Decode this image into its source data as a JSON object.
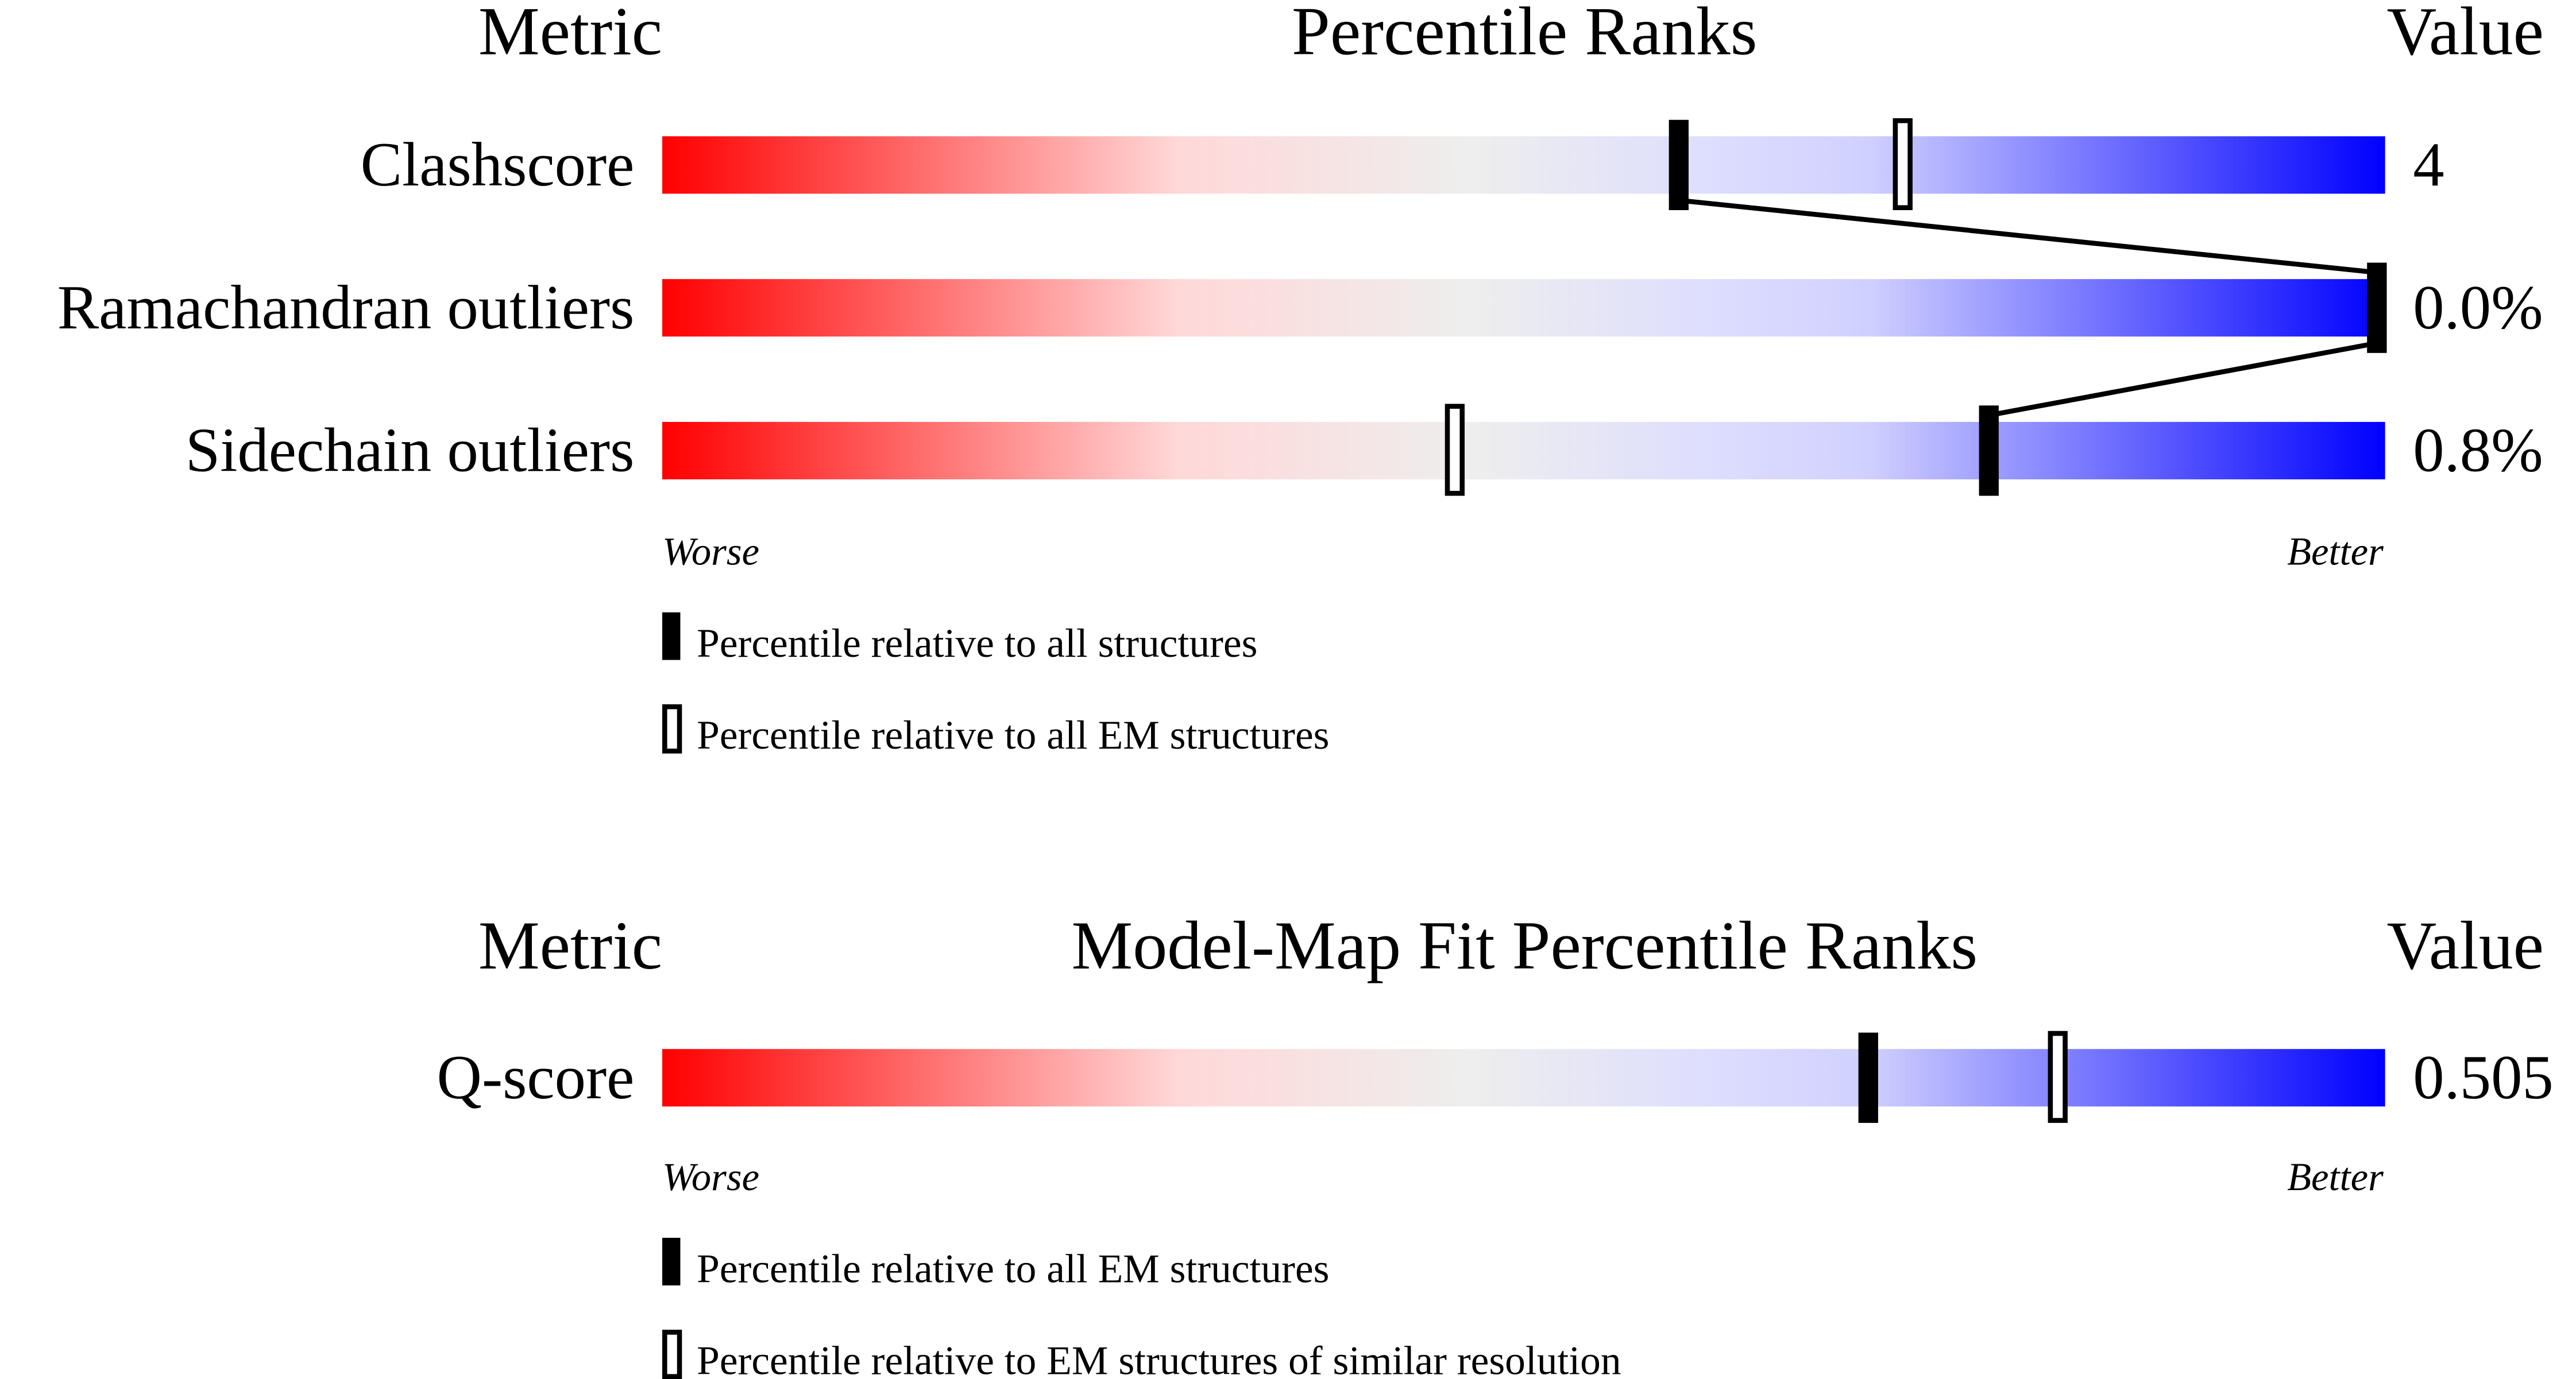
{
  "chart_data": [
    {
      "type": "percentile-rank-bars",
      "headers": {
        "metric": "Metric",
        "title": "Percentile Ranks",
        "value": "Value"
      },
      "scale": {
        "min": 0,
        "max": 100,
        "low_label": "Worse",
        "high_label": "Better"
      },
      "gradient_colors": [
        "#ff0000",
        "#ffd8d8",
        "#eeeeee",
        "#dcdcff",
        "#0000ff"
      ],
      "metrics": [
        {
          "name": "Clashscore",
          "value": "4",
          "percentile_all": 59,
          "percentile_em": 72
        },
        {
          "name": "Ramachandran outliers",
          "value": "0.0%",
          "percentile_all": 100,
          "percentile_em": 100
        },
        {
          "name": "Sidechain outliers",
          "value": "0.8%",
          "percentile_all": 77,
          "percentile_em": 46
        }
      ],
      "connect_series": "all",
      "legend": [
        {
          "marker": "filled",
          "text": "Percentile relative to all structures"
        },
        {
          "marker": "open",
          "text": "Percentile relative to all EM structures"
        }
      ]
    },
    {
      "type": "percentile-rank-bars",
      "headers": {
        "metric": "Metric",
        "title": "Model-Map Fit Percentile Ranks",
        "value": "Value"
      },
      "scale": {
        "min": 0,
        "max": 100,
        "low_label": "Worse",
        "high_label": "Better"
      },
      "gradient_colors": [
        "#ff0000",
        "#ffd8d8",
        "#eeeeee",
        "#dcdcff",
        "#0000ff"
      ],
      "metrics": [
        {
          "name": "Q-score",
          "value": "0.505",
          "percentile_all": 70,
          "percentile_em": 81
        }
      ],
      "legend": [
        {
          "marker": "filled",
          "text": "Percentile relative to all EM structures"
        },
        {
          "marker": "open",
          "text": "Percentile relative to EM structures of similar resolution"
        }
      ]
    }
  ]
}
